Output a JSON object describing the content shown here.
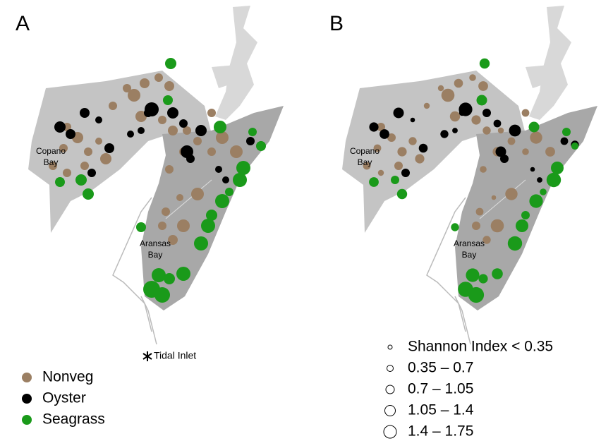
{
  "panel_a": {
    "label": "A",
    "places": [
      {
        "lines": [
          "Copano",
          "Bay"
        ]
      },
      {
        "lines": [
          "Aransas",
          "Bay"
        ]
      }
    ],
    "marker": "Tidal Inlet",
    "legend": [
      "Nonveg",
      "Oyster",
      "Seagrass"
    ]
  },
  "panel_b": {
    "label": "B",
    "places": [
      {
        "lines": [
          "Copano",
          "Bay"
        ]
      },
      {
        "lines": [
          "Aransas",
          "Bay"
        ]
      }
    ],
    "legend": [
      "Shannon Index < 0.35",
      "0.35 – 0.7",
      "0.7 – 1.05",
      "1.05 – 1.4",
      "1.4 – 1.75"
    ]
  }
}
